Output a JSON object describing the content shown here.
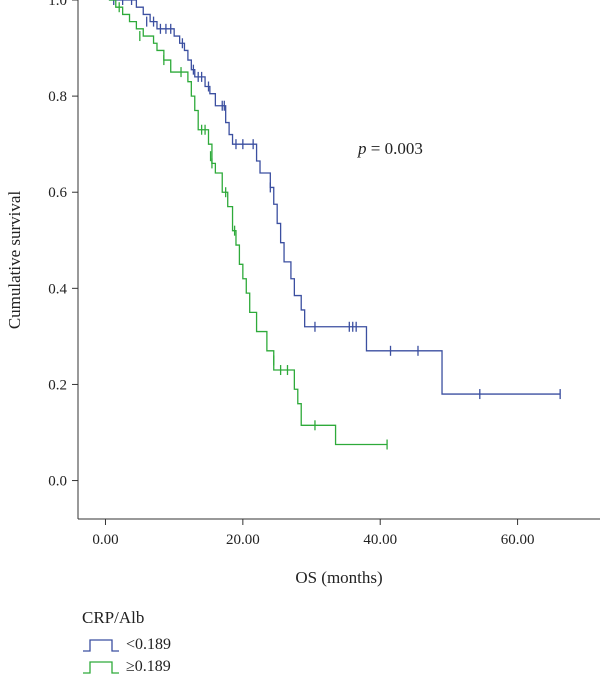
{
  "chart_data": {
    "type": "line",
    "subtype": "kaplan-meier",
    "title": "",
    "xlabel": "OS (months)",
    "ylabel": "Cumulative survival",
    "xlim": [
      -4,
      72
    ],
    "ylim": [
      -0.08,
      1.0
    ],
    "xticks": [
      0,
      20,
      40,
      60
    ],
    "xtick_labels": [
      "0.00",
      "20.00",
      "40.00",
      "60.00"
    ],
    "yticks": [
      0.0,
      0.2,
      0.4,
      0.6,
      0.8,
      1.0
    ],
    "ytick_labels": [
      "0.0",
      "0.2",
      "0.4",
      "0.6",
      "0.8",
      "1.0"
    ],
    "grid": false,
    "annotation": {
      "italic": "p",
      "text": " = 0.003",
      "x": 37,
      "y": 0.735
    },
    "legend": {
      "title": "CRP/Alb",
      "placement": "bottom-left",
      "entries": [
        "<0.189",
        "≥0.189"
      ]
    },
    "series": [
      {
        "name": "<0.189",
        "color": "#3b4fa0",
        "steps": [
          [
            0.5,
            1.0
          ],
          [
            4.5,
            0.985
          ],
          [
            5.5,
            0.97
          ],
          [
            6.5,
            0.955
          ],
          [
            7.5,
            0.94
          ],
          [
            10.0,
            0.925
          ],
          [
            10.8,
            0.91
          ],
          [
            11.5,
            0.895
          ],
          [
            12.0,
            0.875
          ],
          [
            12.5,
            0.855
          ],
          [
            13.0,
            0.84
          ],
          [
            14.5,
            0.82
          ],
          [
            15.2,
            0.805
          ],
          [
            16.0,
            0.78
          ],
          [
            17.5,
            0.745
          ],
          [
            18.0,
            0.72
          ],
          [
            18.5,
            0.7
          ],
          [
            22.0,
            0.665
          ],
          [
            22.5,
            0.64
          ],
          [
            24.0,
            0.61
          ],
          [
            24.5,
            0.575
          ],
          [
            25.0,
            0.535
          ],
          [
            25.5,
            0.495
          ],
          [
            26.0,
            0.455
          ],
          [
            27.0,
            0.42
          ],
          [
            27.5,
            0.385
          ],
          [
            28.5,
            0.355
          ],
          [
            29.0,
            0.32
          ],
          [
            38.0,
            0.27
          ],
          [
            49.0,
            0.18
          ],
          [
            66.2,
            0.18
          ]
        ],
        "censored": [
          [
            1.2,
            1.0
          ],
          [
            2.5,
            1.0
          ],
          [
            3.8,
            1.0
          ],
          [
            6.0,
            0.955
          ],
          [
            7.0,
            0.955
          ],
          [
            8.0,
            0.94
          ],
          [
            8.8,
            0.94
          ],
          [
            9.5,
            0.94
          ],
          [
            11.2,
            0.91
          ],
          [
            12.8,
            0.855
          ],
          [
            13.5,
            0.84
          ],
          [
            14.0,
            0.84
          ],
          [
            15.0,
            0.82
          ],
          [
            17.0,
            0.78
          ],
          [
            17.3,
            0.78
          ],
          [
            19.0,
            0.7
          ],
          [
            20.0,
            0.7
          ],
          [
            21.5,
            0.7
          ],
          [
            24.0,
            0.61
          ],
          [
            30.5,
            0.32
          ],
          [
            35.5,
            0.32
          ],
          [
            36.0,
            0.32
          ],
          [
            36.5,
            0.32
          ],
          [
            41.5,
            0.27
          ],
          [
            45.5,
            0.27
          ],
          [
            54.5,
            0.18
          ],
          [
            66.2,
            0.18
          ]
        ]
      },
      {
        "name": "≥0.189",
        "color": "#2eaa3a",
        "steps": [
          [
            0.5,
            1.0
          ],
          [
            1.5,
            0.985
          ],
          [
            2.5,
            0.97
          ],
          [
            3.5,
            0.955
          ],
          [
            4.5,
            0.94
          ],
          [
            5.5,
            0.925
          ],
          [
            7.0,
            0.91
          ],
          [
            7.5,
            0.895
          ],
          [
            8.5,
            0.875
          ],
          [
            9.5,
            0.85
          ],
          [
            12.0,
            0.83
          ],
          [
            12.5,
            0.8
          ],
          [
            13.0,
            0.77
          ],
          [
            13.5,
            0.73
          ],
          [
            15.0,
            0.7
          ],
          [
            15.5,
            0.66
          ],
          [
            16.0,
            0.64
          ],
          [
            17.0,
            0.6
          ],
          [
            17.8,
            0.57
          ],
          [
            18.5,
            0.52
          ],
          [
            19.0,
            0.49
          ],
          [
            19.5,
            0.45
          ],
          [
            20.0,
            0.42
          ],
          [
            20.5,
            0.39
          ],
          [
            21.0,
            0.35
          ],
          [
            22.0,
            0.31
          ],
          [
            23.5,
            0.27
          ],
          [
            24.5,
            0.23
          ],
          [
            27.5,
            0.19
          ],
          [
            28.0,
            0.16
          ],
          [
            28.5,
            0.115
          ],
          [
            33.5,
            0.075
          ],
          [
            41.0,
            0.075
          ]
        ],
        "censored": [
          [
            2.0,
            0.985
          ],
          [
            5.0,
            0.925
          ],
          [
            8.5,
            0.875
          ],
          [
            11.0,
            0.85
          ],
          [
            14.0,
            0.73
          ],
          [
            14.5,
            0.73
          ],
          [
            15.3,
            0.675
          ],
          [
            15.5,
            0.66
          ],
          [
            17.5,
            0.6
          ],
          [
            18.8,
            0.52
          ],
          [
            24.5,
            0.25
          ],
          [
            25.5,
            0.23
          ],
          [
            26.5,
            0.23
          ],
          [
            30.5,
            0.115
          ],
          [
            41.0,
            0.075
          ]
        ]
      }
    ]
  }
}
